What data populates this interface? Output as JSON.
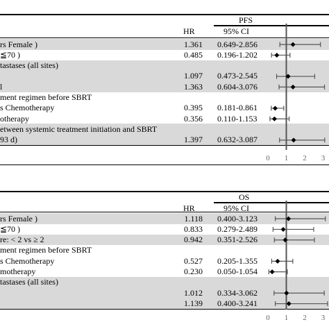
{
  "panels": [
    {
      "id": "pfs",
      "outcome_label": "PFS",
      "hr_header": "HR",
      "ci_header": "95% CI",
      "rows": [
        {
          "label": "rs Female )",
          "hr": "1.361",
          "ci": "0.649-2.856",
          "shaded": true,
          "point": 1.361,
          "lo": 0.649,
          "hi": 2.856
        },
        {
          "label": "≦70 )",
          "hr": "0.485",
          "ci": "0.196-1.202",
          "shaded": false,
          "point": 0.485,
          "lo": 0.196,
          "hi": 1.202
        },
        {
          "label": "tastases (all sites)",
          "hr": "",
          "ci": "",
          "shaded": true,
          "point": null
        },
        {
          "label": "",
          "hr": "1.097",
          "ci": "0.473-2.545",
          "shaded": true,
          "point": 1.097,
          "lo": 0.473,
          "hi": 2.545
        },
        {
          "label": "l",
          "hr": "1.363",
          "ci": "0.604-3.076",
          "shaded": true,
          "point": 1.363,
          "lo": 0.604,
          "hi": 3.076
        },
        {
          "label": "ment regimen before SBRT",
          "hr": "",
          "ci": "",
          "shaded": false,
          "point": null
        },
        {
          "label": "s Chemotherapy",
          "hr": "0.395",
          "ci": "0.181-0.861",
          "shaded": false,
          "point": 0.395,
          "lo": 0.181,
          "hi": 0.861
        },
        {
          "label": "otherapy",
          "hr": "0.356",
          "ci": "0.110-1.153",
          "shaded": false,
          "point": 0.356,
          "lo": 0.11,
          "hi": 1.153
        },
        {
          "label": "etween systemic treatment initiation and SBRT",
          "hr": "",
          "ci": "",
          "shaded": true,
          "point": null
        },
        {
          "label": "93 d)",
          "hr": "1.397",
          "ci": "0.632-3.087",
          "shaded": true,
          "point": 1.397,
          "lo": 0.632,
          "hi": 3.087
        }
      ],
      "axis_ticks": [
        "0",
        "1",
        "2",
        "3"
      ]
    },
    {
      "id": "os",
      "outcome_label": "OS",
      "hr_header": "HR",
      "ci_header": "95% CI",
      "rows": [
        {
          "label": "rs Female )",
          "hr": "1.118",
          "ci": "0.400-3.123",
          "shaded": true,
          "point": 1.118,
          "lo": 0.4,
          "hi": 3.123
        },
        {
          "label": "≦70 )",
          "hr": "0.833",
          "ci": "0.279-2.489",
          "shaded": false,
          "point": 0.833,
          "lo": 0.279,
          "hi": 2.489
        },
        {
          "label": "re: < 2 vs ≥ 2",
          "hr": "0.942",
          "ci": "0.351-2.526",
          "shaded": true,
          "point": 0.942,
          "lo": 0.351,
          "hi": 2.526
        },
        {
          "label": "ment regimen before SBRT",
          "hr": "",
          "ci": "",
          "shaded": false,
          "point": null
        },
        {
          "label": "s Chemotherapy",
          "hr": "0.527",
          "ci": "0.205-1.355",
          "shaded": false,
          "point": 0.527,
          "lo": 0.205,
          "hi": 1.355
        },
        {
          "label": "motherapy",
          "hr": "0.230",
          "ci": "0.050-1.054",
          "shaded": false,
          "point": 0.23,
          "lo": 0.05,
          "hi": 1.054
        },
        {
          "label": "tastases (all sites)",
          "hr": "",
          "ci": "",
          "shaded": true,
          "point": null
        },
        {
          "label": "",
          "hr": "1.012",
          "ci": "0.334-3.062",
          "shaded": true,
          "point": 1.012,
          "lo": 0.334,
          "hi": 3.062
        },
        {
          "label": "",
          "hr": "1.139",
          "ci": "0.400-3.241",
          "shaded": true,
          "point": 1.139,
          "lo": 0.4,
          "hi": 3.241
        }
      ],
      "axis_ticks": [
        "0",
        "1",
        "2",
        "3"
      ]
    }
  ],
  "chart_data": [
    {
      "type": "forest",
      "series": [
        {
          "name": "PFS",
          "values": [
            {
              "hr": 1.361,
              "lo": 0.649,
              "hi": 2.856
            },
            {
              "hr": 0.485,
              "lo": 0.196,
              "hi": 1.202
            },
            {
              "hr": 1.097,
              "lo": 0.473,
              "hi": 2.545
            },
            {
              "hr": 1.363,
              "lo": 0.604,
              "hi": 3.076
            },
            {
              "hr": 0.395,
              "lo": 0.181,
              "hi": 0.861
            },
            {
              "hr": 0.356,
              "lo": 0.11,
              "hi": 1.153
            },
            {
              "hr": 1.397,
              "lo": 0.632,
              "hi": 3.087
            }
          ]
        }
      ],
      "xlim": [
        0,
        3
      ],
      "reference_line": 1,
      "grid": false
    },
    {
      "type": "forest",
      "series": [
        {
          "name": "OS",
          "values": [
            {
              "hr": 1.118,
              "lo": 0.4,
              "hi": 3.123
            },
            {
              "hr": 0.833,
              "lo": 0.279,
              "hi": 2.489
            },
            {
              "hr": 0.942,
              "lo": 0.351,
              "hi": 2.526
            },
            {
              "hr": 0.527,
              "lo": 0.205,
              "hi": 1.355
            },
            {
              "hr": 0.23,
              "lo": 0.05,
              "hi": 1.054
            },
            {
              "hr": 1.012,
              "lo": 0.334,
              "hi": 3.062
            },
            {
              "hr": 1.139,
              "lo": 0.4,
              "hi": 3.241
            }
          ]
        }
      ],
      "xlim": [
        0,
        3
      ],
      "reference_line": 1,
      "grid": false
    }
  ]
}
